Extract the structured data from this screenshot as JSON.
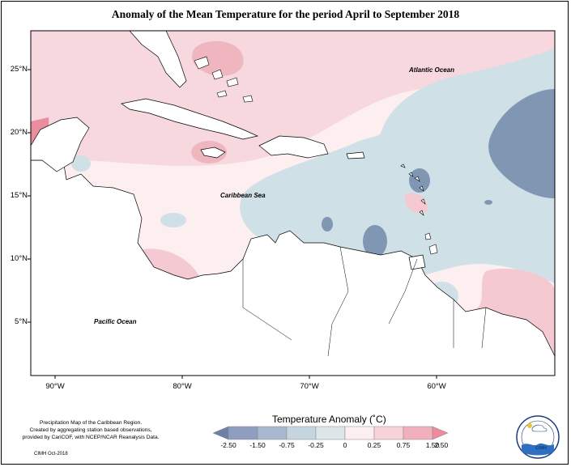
{
  "title": "Anomaly of the Mean Temperature for the period April to September 2018",
  "lat_labels": [
    "25°N",
    "20°N",
    "15°N",
    "10°N",
    "5°N"
  ],
  "lon_labels": [
    "90°W",
    "80°W",
    "70°W",
    "60°W"
  ],
  "regions": {
    "atlantic": "Atlantic Ocean",
    "caribbean": "Caribbean Sea",
    "pacific": "Pacific Ocean"
  },
  "legend": {
    "title": "Temperature Anomaly (˚C)",
    "labels": [
      "-2.50",
      "-1.50",
      "-0.75",
      "-0.25",
      "0",
      "0.25",
      "0.75",
      "1.50",
      "2.50"
    ],
    "colors": [
      "#6e7fa8",
      "#8f9ec0",
      "#a9b6cf",
      "#c4d5df",
      "#dce6ea",
      "#fdeef0",
      "#f7d3d9",
      "#f1b0bc",
      "#ec8b9b"
    ]
  },
  "credit": {
    "line1": "Precipitation Map of the Caribbean Region.",
    "line2": "Created by aggregating station based observations,",
    "line3": "provided by CariCOF, with NCEP/NCAR Reanalysis Data.",
    "date": "CIMH Oct-2018"
  },
  "logo": {
    "text": "CIMH"
  },
  "colors": {
    "warm_light": "#fbe7ea",
    "warm": "#f4c9d1",
    "warm_strong": "#ee9fac",
    "neutral": "#fdf3f4",
    "cool_light": "#cfe0e6",
    "cool": "#9fb3c8",
    "cool_strong": "#7189a8"
  }
}
